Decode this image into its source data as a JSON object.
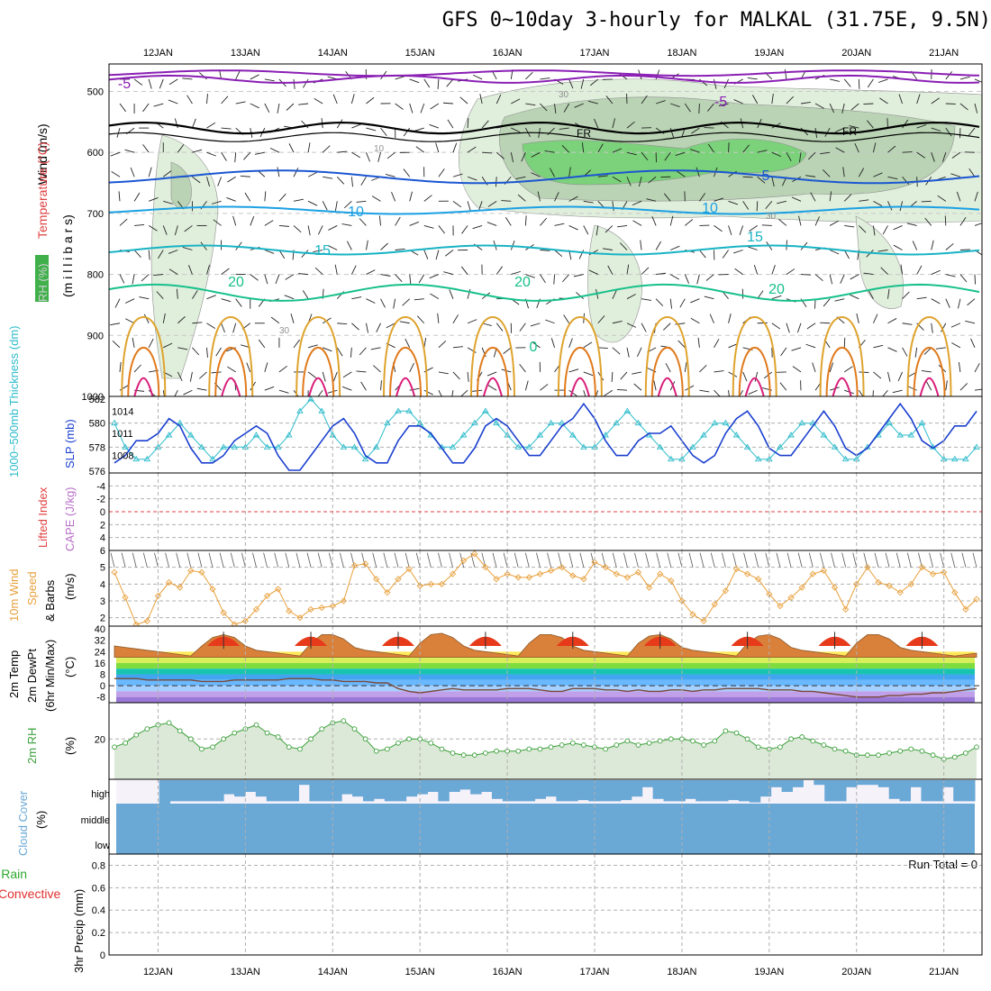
{
  "title": "GFS 0~10day 3-hourly for MALKAL (31.75E, 9.5N)",
  "dates": [
    "12JAN",
    "13JAN",
    "14JAN",
    "15JAN",
    "16JAN",
    "17JAN",
    "18JAN",
    "19JAN",
    "20JAN",
    "21JAN"
  ],
  "panels": {
    "upper": {
      "label_wind": "Wind (m/s)",
      "label_temp": "Temperature (°C)",
      "label_pressure": "(m i l l i b a r s)",
      "label_rh": "RH (%)",
      "y_ticks": [
        "500",
        "600",
        "700",
        "800",
        "900",
        "1000"
      ]
    },
    "thickness": {
      "label_thick": "1000~500mb Thickness (dm)",
      "label_slp": "SLP (mb)",
      "left_ticks": [
        "582",
        "580",
        "578",
        "576"
      ],
      "right_ticks": [
        "1014",
        "1011",
        "1008"
      ]
    },
    "cape": {
      "label_li": "Lifted Index",
      "label_cape": "CAPE (J/kg)",
      "ticks": [
        "-4",
        "-2",
        "0",
        "2",
        "4",
        "6"
      ]
    },
    "wind10": {
      "label_a": "10m Wind",
      "label_b": "Speed",
      "label_c": "& Barbs",
      "label_units": "(m/s)",
      "ticks": [
        "5",
        "4",
        "3",
        "2"
      ]
    },
    "temp2m": {
      "label_a": "2m Temp",
      "label_b": "2m DewPt",
      "label_c": "(6hr Min/Max)",
      "label_units": "(°C)",
      "ticks": [
        "40",
        "32",
        "24",
        "16",
        "8",
        "0",
        "-8"
      ]
    },
    "rh2m": {
      "label_a": "2m RH",
      "label_units": "(%)",
      "ticks": [
        "20"
      ]
    },
    "cloud": {
      "label_a": "Cloud Cover",
      "label_units": "(%)",
      "ticks": [
        "high",
        "middle",
        "low"
      ]
    },
    "precip": {
      "label_a": "Total / Rain",
      "label_b": "Convective",
      "label_c": "3hr Precip (mm)",
      "run_total": "Run Total = 0",
      "ticks": [
        "0.8",
        "0.6",
        "0.4",
        "0.2",
        "0"
      ]
    }
  },
  "contour_labels": {
    "temp": [
      "-5",
      "-5",
      "5",
      "10",
      "10",
      "15",
      "15",
      "20",
      "20",
      "20",
      "0"
    ],
    "freezing": [
      "FR",
      "FR"
    ],
    "rh": [
      "10",
      "30",
      "30",
      "30"
    ]
  },
  "colors": {
    "upper_bg": "#ffffff",
    "rh_light": "#e0eedc",
    "rh_mid": "#b9d3b4",
    "rh_dark": "#7bd27a",
    "temp_m5": "#8a1fb4",
    "temp_5": "#1b56d1",
    "temp_10": "#1ba0e3",
    "temp_15": "#18b3c4",
    "temp_20": "#17c08b",
    "temp_25": "#dfa32d",
    "temp_30": "#e07a1c",
    "temp_35": "#d91e7a",
    "slp": "#1a3fcf",
    "thickness": "#2ebccb",
    "wind10": "#e8a03c",
    "rh2m": "#3ba03b",
    "cloud": "#6aa8d6",
    "cloud_clear": "#f6f2fa"
  },
  "chart_data": [
    {
      "type": "line",
      "title": "1000~500mb Thickness (dm) & SLP (mb)",
      "x": [
        0,
        3,
        6,
        9,
        12,
        15,
        18,
        21,
        24,
        27,
        30,
        33,
        36,
        39,
        42,
        45,
        48,
        51,
        54,
        57,
        60,
        63,
        66,
        69,
        72,
        75,
        78,
        81,
        84,
        87,
        90,
        93,
        96,
        99,
        102,
        105,
        108,
        111,
        114,
        117,
        120,
        123,
        126,
        129,
        132,
        135,
        138,
        141,
        144,
        147,
        150,
        153,
        156,
        159,
        162,
        165,
        168,
        171,
        174,
        177,
        180,
        183,
        186,
        189,
        192,
        195,
        198,
        201,
        204,
        207,
        210,
        213,
        216,
        219,
        222,
        225,
        228,
        231,
        234,
        237
      ],
      "series": [
        {
          "name": "SLP (mb)",
          "axis": "right",
          "values": [
            1007,
            1008,
            1010,
            1010,
            1011,
            1013,
            1012,
            1009,
            1007,
            1007,
            1008,
            1010,
            1011,
            1012,
            1011,
            1008,
            1006,
            1006,
            1008,
            1010,
            1012,
            1013,
            1011,
            1008,
            1007,
            1007,
            1010,
            1012,
            1012,
            1011,
            1009,
            1007,
            1007,
            1009,
            1012,
            1013,
            1012,
            1010,
            1008,
            1008,
            1010,
            1012,
            1013,
            1015,
            1013,
            1010,
            1008,
            1008,
            1010,
            1011,
            1011,
            1012,
            1010,
            1008,
            1007,
            1008,
            1011,
            1013,
            1014,
            1012,
            1009,
            1008,
            1008,
            1010,
            1012,
            1014,
            1012,
            1009,
            1008,
            1009,
            1011,
            1013,
            1015,
            1013,
            1010,
            1009,
            1010,
            1012,
            1012,
            1014
          ]
        },
        {
          "name": "1000~500mb Thickness (dm)",
          "axis": "left",
          "values": [
            580,
            578,
            577,
            577,
            578,
            579,
            580,
            579,
            578,
            577,
            578,
            578,
            578,
            579,
            578,
            578,
            579,
            581,
            582,
            581,
            579,
            578,
            578,
            577,
            578,
            580,
            581,
            581,
            580,
            579,
            578,
            578,
            579,
            580,
            581,
            580,
            579,
            578,
            578,
            579,
            580,
            580,
            579,
            578,
            578,
            579,
            580,
            581,
            580,
            579,
            578,
            577,
            577,
            578,
            579,
            580,
            580,
            579,
            578,
            577,
            577,
            578,
            579,
            580,
            580,
            579,
            578,
            577,
            577,
            578,
            579,
            580,
            579,
            579,
            580,
            578,
            577,
            577,
            577,
            578
          ]
        }
      ],
      "xlabel": "",
      "ylabel": "",
      "ylim_left": [
        576,
        582
      ],
      "ylim_right": [
        1006,
        1016
      ]
    },
    {
      "type": "line",
      "title": "10m Wind Speed & Barbs (m/s)",
      "x": [
        0,
        3,
        6,
        9,
        12,
        15,
        18,
        21,
        24,
        27,
        30,
        33,
        36,
        39,
        42,
        45,
        48,
        51,
        54,
        57,
        60,
        63,
        66,
        69,
        72,
        75,
        78,
        81,
        84,
        87,
        90,
        93,
        96,
        99,
        102,
        105,
        108,
        111,
        114,
        117,
        120,
        123,
        126,
        129,
        132,
        135,
        138,
        141,
        144,
        147,
        150,
        153,
        156,
        159,
        162,
        165,
        168,
        171,
        174,
        177,
        180,
        183,
        186,
        189,
        192,
        195,
        198,
        201,
        204,
        207,
        210,
        213,
        216,
        219,
        222,
        225,
        228,
        231,
        234,
        237
      ],
      "series": [
        {
          "name": "10m Wind Speed",
          "values": [
            4.7,
            3.2,
            1.6,
            1.8,
            3.3,
            4.1,
            3.8,
            4.8,
            4.7,
            3.7,
            2.3,
            1.6,
            1.8,
            2.5,
            3.3,
            3.7,
            2.4,
            2.0,
            2.5,
            2.6,
            2.7,
            3.0,
            5.1,
            5.2,
            4.3,
            3.5,
            4.3,
            4.9,
            3.9,
            4.0,
            4.0,
            4.6,
            5.4,
            5.8,
            5.0,
            4.3,
            4.6,
            4.4,
            4.4,
            4.6,
            4.8,
            5.0,
            4.5,
            4.3,
            5.3,
            5.0,
            4.6,
            4.4,
            4.7,
            3.8,
            4.6,
            4.2,
            3.0,
            2.2,
            1.8,
            2.8,
            3.6,
            4.9,
            4.6,
            4.3,
            3.4,
            2.7,
            3.2,
            3.8,
            4.6,
            4.8,
            3.8,
            2.5,
            4.0,
            5.0,
            4.1,
            3.9,
            3.5,
            4.0,
            5.0,
            4.6,
            4.7,
            3.5,
            2.5,
            3.1
          ]
        }
      ],
      "xlabel": "",
      "ylabel": "(m/s)",
      "ylim": [
        1.5,
        6
      ]
    },
    {
      "type": "area",
      "title": "2m Temp, 2m DewPt (6hr Min/Max) (°C)",
      "x": [
        0,
        3,
        6,
        9,
        12,
        15,
        18,
        21,
        24,
        27,
        30,
        33,
        36,
        39,
        42,
        45,
        48,
        51,
        54,
        57,
        60,
        63,
        66,
        69,
        72,
        75,
        78,
        81,
        84,
        87,
        90,
        93,
        96,
        99,
        102,
        105,
        108,
        111,
        114,
        117,
        120,
        123,
        126,
        129,
        132,
        135,
        138,
        141,
        144,
        147,
        150,
        153,
        156,
        159,
        162,
        165,
        168,
        171,
        174,
        177,
        180,
        183,
        186,
        189,
        192,
        195,
        198,
        201,
        204,
        207,
        210,
        213,
        216,
        219,
        222,
        225,
        228,
        231,
        234,
        237
      ],
      "series": [
        {
          "name": "2m Temp",
          "values": [
            28,
            27,
            26,
            25,
            24,
            23,
            22,
            21,
            28,
            34,
            36,
            34,
            28,
            25,
            24,
            23,
            22,
            21,
            30,
            36,
            36,
            33,
            27,
            25,
            24,
            23,
            22,
            21,
            30,
            36,
            37,
            34,
            28,
            25,
            24,
            23,
            22,
            21,
            30,
            36,
            36,
            34,
            28,
            25,
            24,
            23,
            22,
            21,
            30,
            35,
            36,
            33,
            27,
            25,
            24,
            23,
            22,
            21,
            30,
            35,
            36,
            33,
            27,
            25,
            24,
            23,
            22,
            21,
            30,
            36,
            36,
            33,
            27,
            25,
            24,
            23,
            22,
            21,
            22,
            23
          ]
        },
        {
          "name": "2m DewPt",
          "values": [
            5,
            5,
            5,
            4,
            4,
            4,
            4,
            4,
            3,
            3,
            3,
            4,
            4,
            4,
            4,
            4,
            5,
            5,
            5,
            4,
            4,
            3,
            3,
            3,
            2,
            2,
            -2,
            -4,
            -5,
            -4,
            -3,
            -2,
            -3,
            -3,
            -3,
            -3,
            -2,
            -2,
            -2,
            -3,
            -4,
            -4,
            -2,
            -2,
            -2,
            -3,
            -3,
            -4,
            -3,
            -4,
            -4,
            -3,
            -3,
            -4,
            -3,
            -3,
            -2,
            -2,
            -2,
            -2,
            -3,
            -3,
            -3,
            -4,
            -4,
            -5,
            -6,
            -7,
            -8,
            -8,
            -8,
            -7,
            -7,
            -6,
            -6,
            -5,
            -5,
            -4,
            -3,
            -2
          ]
        }
      ],
      "xlabel": "",
      "ylabel": "(°C)",
      "ylim": [
        -12,
        42
      ]
    },
    {
      "type": "area",
      "title": "2m RH (%)",
      "x": [
        0,
        3,
        6,
        9,
        12,
        15,
        18,
        21,
        24,
        27,
        30,
        33,
        36,
        39,
        42,
        45,
        48,
        51,
        54,
        57,
        60,
        63,
        66,
        69,
        72,
        75,
        78,
        81,
        84,
        87,
        90,
        93,
        96,
        99,
        102,
        105,
        108,
        111,
        114,
        117,
        120,
        123,
        126,
        129,
        132,
        135,
        138,
        141,
        144,
        147,
        150,
        153,
        156,
        159,
        162,
        165,
        168,
        171,
        174,
        177,
        180,
        183,
        186,
        189,
        192,
        195,
        198,
        201,
        204,
        207,
        210,
        213,
        216,
        219,
        222,
        225,
        228,
        231,
        234,
        237
      ],
      "series": [
        {
          "name": "2m RH",
          "values": [
            16,
            18,
            22,
            25,
            27,
            28,
            24,
            20,
            15,
            16,
            20,
            23,
            25,
            27,
            23,
            21,
            16,
            15,
            20,
            25,
            28,
            29,
            25,
            20,
            14,
            15,
            18,
            20,
            20,
            18,
            15,
            13,
            12,
            12,
            13,
            14,
            14,
            14,
            15,
            15,
            16,
            17,
            18,
            17,
            16,
            15,
            17,
            19,
            17,
            18,
            19,
            20,
            20,
            19,
            17,
            19,
            24,
            23,
            20,
            16,
            15,
            16,
            20,
            21,
            19,
            17,
            15,
            14,
            12,
            12,
            12,
            13,
            14,
            15,
            14,
            12,
            10,
            11,
            13,
            16
          ]
        }
      ],
      "xlabel": "",
      "ylabel": "(%)",
      "ylim": [
        0,
        38
      ]
    },
    {
      "type": "bar",
      "title": "Cloud Cover (%)",
      "categories": [
        "high",
        "middle",
        "low"
      ],
      "values": [
        75,
        100,
        100
      ],
      "ylim": [
        0,
        100
      ]
    },
    {
      "type": "bar",
      "title": "3hr Precip (mm)",
      "values": [
        0
      ],
      "ylim": [
        0,
        0.9
      ]
    }
  ]
}
